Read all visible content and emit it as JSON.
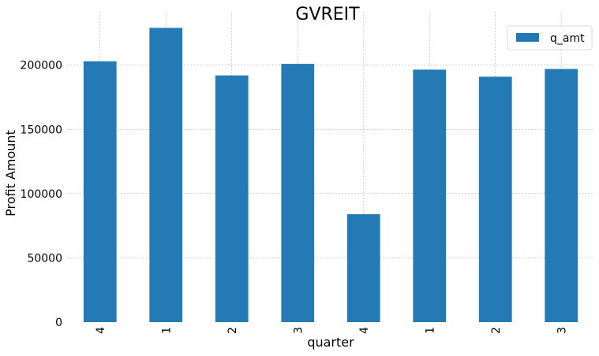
{
  "chart_data": {
    "type": "bar",
    "title": "GVREIT",
    "xlabel": "quarter",
    "ylabel": "Profit Amount",
    "categories": [
      "4",
      "1",
      "2",
      "3",
      "4",
      "1",
      "2",
      "3"
    ],
    "series": [
      {
        "name": "q_amt",
        "values": [
          203000,
          229000,
          192000,
          201000,
          84000,
          196500,
          191000,
          197000
        ]
      }
    ],
    "ylim": [
      0,
      241500
    ],
    "yticks": [
      0,
      50000,
      100000,
      150000,
      200000
    ],
    "ytick_labels": [
      "0",
      "50000",
      "100000",
      "150000",
      "200000"
    ],
    "grid": true,
    "legend_position": "top-right",
    "colors": {
      "bar": "#1f77b4",
      "grid": "#b0b0b0",
      "background": "#ffffff"
    }
  }
}
